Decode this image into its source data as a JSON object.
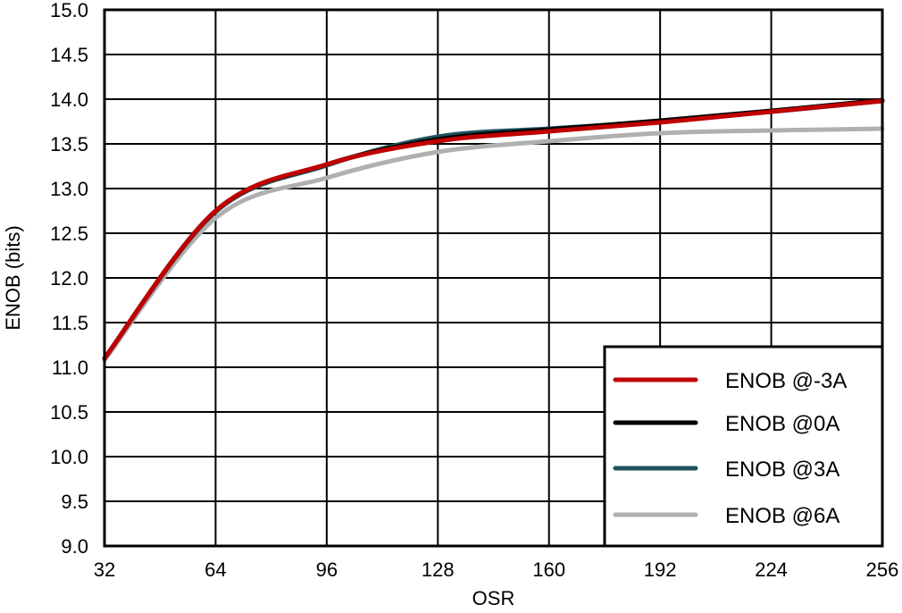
{
  "chart_data": {
    "type": "line",
    "title": "",
    "xlabel": "OSR",
    "ylabel": "ENOB (bits)",
    "xlim": [
      32,
      256
    ],
    "ylim": [
      9.0,
      15.0
    ],
    "x_ticks": [
      32,
      64,
      96,
      128,
      160,
      192,
      224,
      256
    ],
    "y_ticks": [
      9.0,
      9.5,
      10.0,
      10.5,
      11.0,
      11.5,
      12.0,
      12.5,
      13.0,
      13.5,
      14.0,
      14.5,
      15.0
    ],
    "x_tick_labels": [
      "32",
      "64",
      "96",
      "128",
      "160",
      "192",
      "224",
      "256"
    ],
    "y_tick_labels": [
      "9.0",
      "9.5",
      "10.0",
      "10.5",
      "11.0",
      "11.5",
      "12.0",
      "12.5",
      "13.0",
      "13.5",
      "14.0",
      "14.5",
      "15.0"
    ],
    "grid": true,
    "legend_position": "bottom-right",
    "x": [
      32,
      64,
      96,
      128,
      160,
      192,
      224,
      256
    ],
    "series": [
      {
        "name": "ENOB @-3A",
        "color": "#c00000",
        "values": [
          11.1,
          12.75,
          13.27,
          13.53,
          13.64,
          13.74,
          13.86,
          13.98
        ]
      },
      {
        "name": "ENOB @0A",
        "color": "#000000",
        "values": [
          11.1,
          12.75,
          13.27,
          13.55,
          13.66,
          13.76,
          13.87,
          13.99
        ]
      },
      {
        "name": "ENOB @3A",
        "color": "#1f535f",
        "values": [
          11.1,
          12.74,
          13.26,
          13.58,
          13.67,
          13.75,
          13.86,
          13.98
        ]
      },
      {
        "name": "ENOB @6A",
        "color": "#b0b0b0",
        "values": [
          11.08,
          12.67,
          13.12,
          13.41,
          13.53,
          13.62,
          13.65,
          13.67
        ]
      }
    ]
  }
}
